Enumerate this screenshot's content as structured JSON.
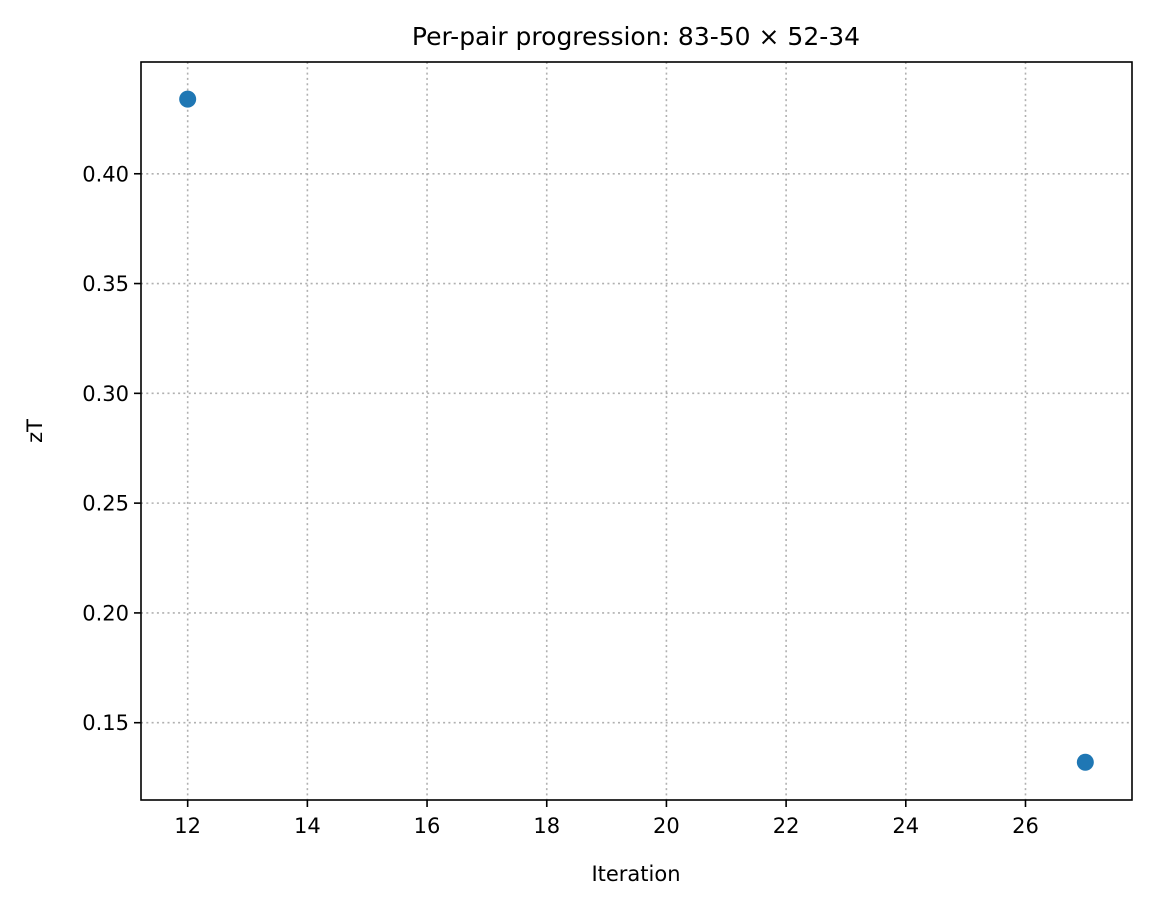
{
  "chart_data": {
    "type": "scatter",
    "title": "Per-pair progression: 83-50 × 52-34",
    "xlabel": "Iteration",
    "ylabel": "zT",
    "xlim": [
      11.22,
      27.78
    ],
    "ylim": [
      0.1148,
      0.4509
    ],
    "xticks": [
      12,
      14,
      16,
      18,
      20,
      22,
      24,
      26
    ],
    "xtick_labels": [
      "12",
      "14",
      "16",
      "18",
      "20",
      "22",
      "24",
      "26"
    ],
    "yticks": [
      0.15,
      0.2,
      0.25,
      0.3,
      0.35,
      0.4
    ],
    "ytick_labels": [
      "0.15",
      "0.20",
      "0.25",
      "0.30",
      "0.35",
      "0.40"
    ],
    "grid": true,
    "grid_style": "dotted",
    "series": [
      {
        "color": "#1f77b4",
        "points": [
          {
            "x": 12,
            "y": 0.434
          },
          {
            "x": 27,
            "y": 0.132
          }
        ]
      }
    ]
  }
}
